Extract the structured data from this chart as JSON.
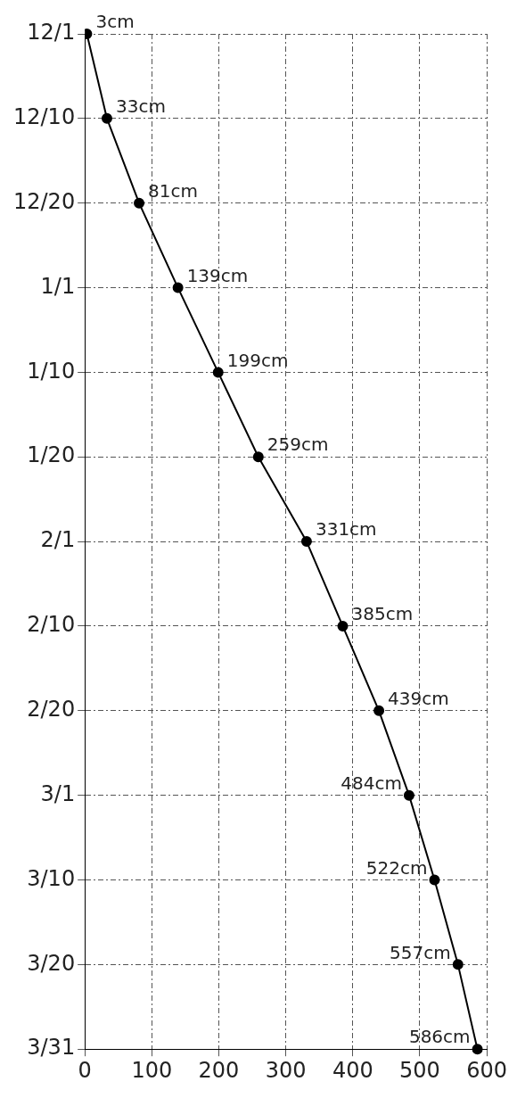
{
  "chart_data": {
    "type": "line",
    "orientation": "horizontal",
    "categories": [
      "12/1",
      "12/10",
      "12/20",
      "1/1",
      "1/10",
      "1/20",
      "2/1",
      "2/10",
      "2/20",
      "3/1",
      "3/10",
      "3/20",
      "3/31"
    ],
    "values": [
      3,
      33,
      81,
      139,
      199,
      259,
      331,
      385,
      439,
      484,
      522,
      557,
      586
    ],
    "value_labels": [
      "3cm",
      "33cm",
      "81cm",
      "139cm",
      "199cm",
      "259cm",
      "331cm",
      "385cm",
      "439cm",
      "484cm",
      "522cm",
      "557cm",
      "586cm"
    ],
    "color": "#000000",
    "xlim": [
      0,
      600
    ],
    "xticks": [
      0,
      100,
      200,
      300,
      400,
      500,
      600
    ],
    "grid": true,
    "marker": "circle",
    "line_style": "solid"
  }
}
